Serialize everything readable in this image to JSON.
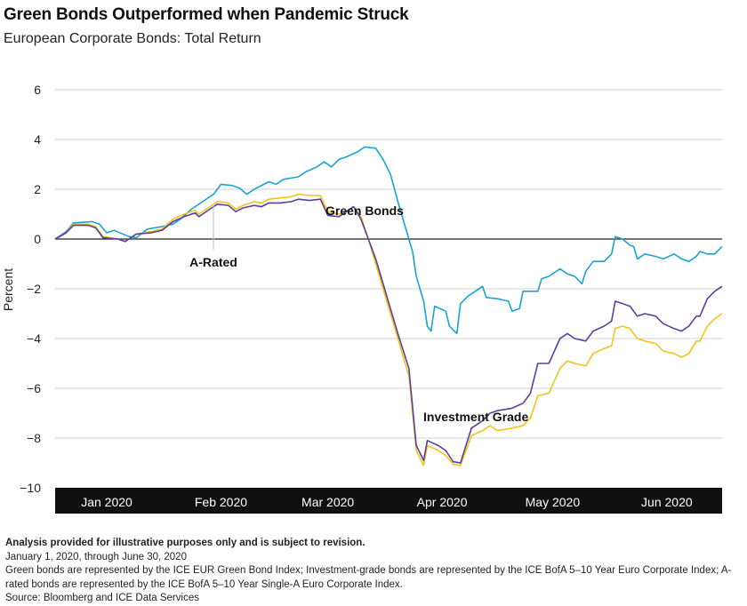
{
  "title": "Green Bonds Outperformed when Pandemic Struck",
  "subtitle": "European Corporate Bonds: Total Return",
  "notes": {
    "disclaimer": "Analysis provided for illustrative purposes only and is subject to revision.",
    "period": "January 1, 2020, through June 30, 2020",
    "definitions": "Green bonds are represented by the ICE EUR Green Bond Index; Investment-grade bonds are represented by the ICE BofA 5–10 Year Euro Corporate Index; A-rated bonds are represented by the ICE BofA 5–10 Year Single-A Euro Corporate Index.",
    "source": "Source: Bloomberg and ICE Data Services"
  },
  "chart_data": {
    "type": "line",
    "ylabel": "Percent",
    "ylim": [
      -10,
      6
    ],
    "yticks": [
      6,
      4,
      2,
      0,
      -2,
      -4,
      -6,
      -8,
      -10
    ],
    "yticklabels": [
      "6",
      "4",
      "2",
      "0",
      "−2",
      "−4",
      "−6",
      "−8",
      "−10"
    ],
    "x_range": [
      "2020-01-01",
      "2020-06-30"
    ],
    "month_labels": [
      {
        "label": "Jan 2020",
        "date": "2020-01-15"
      },
      {
        "label": "Feb 2020",
        "date": "2020-02-15"
      },
      {
        "label": "Mar 2020",
        "date": "2020-03-15"
      },
      {
        "label": "Apr 2020",
        "date": "2020-04-15"
      },
      {
        "label": "May 2020",
        "date": "2020-05-15"
      },
      {
        "label": "Jun 2020",
        "date": "2020-06-15"
      }
    ],
    "zero_line": true,
    "annotations": [
      {
        "text": "Green Bonds",
        "series": "Green Bonds"
      },
      {
        "text": "A-Rated",
        "series": "A-Rated"
      },
      {
        "text": "Investment Grade",
        "series": "Investment Grade"
      }
    ],
    "series": [
      {
        "name": "Green Bonds",
        "color": "#1aa3d0",
        "points": [
          [
            "2020-01-01",
            0.0
          ],
          [
            "2020-01-04",
            0.3
          ],
          [
            "2020-01-06",
            0.65
          ],
          [
            "2020-01-11",
            0.7
          ],
          [
            "2020-01-13",
            0.6
          ],
          [
            "2020-01-15",
            0.25
          ],
          [
            "2020-01-17",
            0.35
          ],
          [
            "2020-01-21",
            0.1
          ],
          [
            "2020-01-23",
            0.05
          ],
          [
            "2020-01-26",
            0.4
          ],
          [
            "2020-01-30",
            0.5
          ],
          [
            "2020-02-02",
            0.6
          ],
          [
            "2020-02-04",
            0.8
          ],
          [
            "2020-02-07",
            1.2
          ],
          [
            "2020-02-10",
            1.5
          ],
          [
            "2020-02-13",
            1.8
          ],
          [
            "2020-02-15",
            2.2
          ],
          [
            "2020-02-18",
            2.15
          ],
          [
            "2020-02-20",
            2.05
          ],
          [
            "2020-02-22",
            1.8
          ],
          [
            "2020-02-24",
            2.0
          ],
          [
            "2020-02-28",
            2.3
          ],
          [
            "2020-03-01",
            2.2
          ],
          [
            "2020-03-03",
            2.4
          ],
          [
            "2020-03-07",
            2.5
          ],
          [
            "2020-03-09",
            2.7
          ],
          [
            "2020-03-12",
            2.9
          ],
          [
            "2020-03-14",
            3.1
          ],
          [
            "2020-03-16",
            2.9
          ],
          [
            "2020-03-18",
            3.2
          ],
          [
            "2020-03-20",
            3.3
          ],
          [
            "2020-03-23",
            3.5
          ],
          [
            "2020-03-25",
            3.7
          ],
          [
            "2020-03-28",
            3.65
          ],
          [
            "2020-03-30",
            3.2
          ],
          [
            "2020-04-01",
            2.6
          ],
          [
            "2020-04-03",
            1.5
          ],
          [
            "2020-04-05",
            0.5
          ],
          [
            "2020-04-07",
            -0.5
          ],
          [
            "2020-04-08",
            -1.5
          ],
          [
            "2020-04-10",
            -2.5
          ],
          [
            "2020-04-11",
            -3.5
          ],
          [
            "2020-04-12",
            -3.7
          ],
          [
            "2020-04-13",
            -2.7
          ],
          [
            "2020-04-16",
            -2.9
          ],
          [
            "2020-04-17",
            -3.5
          ],
          [
            "2020-04-19",
            -3.8
          ],
          [
            "2020-04-20",
            -2.6
          ],
          [
            "2020-04-22",
            -2.3
          ],
          [
            "2020-04-24",
            -2.1
          ],
          [
            "2020-04-26",
            -1.9
          ],
          [
            "2020-04-27",
            -2.35
          ],
          [
            "2020-04-30",
            -2.4
          ],
          [
            "2020-05-03",
            -2.5
          ],
          [
            "2020-05-04",
            -2.9
          ],
          [
            "2020-05-06",
            -2.8
          ],
          [
            "2020-05-07",
            -2.1
          ],
          [
            "2020-05-11",
            -2.1
          ],
          [
            "2020-05-12",
            -1.6
          ],
          [
            "2020-05-14",
            -1.5
          ],
          [
            "2020-05-17",
            -1.2
          ],
          [
            "2020-05-19",
            -1.4
          ],
          [
            "2020-05-21",
            -1.5
          ],
          [
            "2020-05-23",
            -1.8
          ],
          [
            "2020-05-24",
            -1.3
          ],
          [
            "2020-05-26",
            -0.9
          ],
          [
            "2020-05-29",
            -0.9
          ],
          [
            "2020-05-31",
            -0.6
          ],
          [
            "2020-06-01",
            0.1
          ],
          [
            "2020-06-03",
            0.0
          ],
          [
            "2020-06-05",
            -0.25
          ],
          [
            "2020-06-06",
            -0.3
          ],
          [
            "2020-06-07",
            -0.8
          ],
          [
            "2020-06-09",
            -0.6
          ],
          [
            "2020-06-12",
            -0.7
          ],
          [
            "2020-06-14",
            -0.8
          ],
          [
            "2020-06-17",
            -0.6
          ],
          [
            "2020-06-19",
            -0.8
          ],
          [
            "2020-06-21",
            -0.9
          ],
          [
            "2020-06-23",
            -0.7
          ],
          [
            "2020-06-24",
            -0.5
          ],
          [
            "2020-06-26",
            -0.6
          ],
          [
            "2020-06-28",
            -0.6
          ],
          [
            "2020-06-30",
            -0.3
          ]
        ]
      },
      {
        "name": "A-Rated",
        "color": "#f2c417",
        "points": [
          [
            "2020-01-01",
            0.0
          ],
          [
            "2020-01-04",
            0.25
          ],
          [
            "2020-01-06",
            0.6
          ],
          [
            "2020-01-10",
            0.6
          ],
          [
            "2020-01-12",
            0.5
          ],
          [
            "2020-01-14",
            0.1
          ],
          [
            "2020-01-18",
            0.0
          ],
          [
            "2020-01-20",
            -0.1
          ],
          [
            "2020-01-23",
            0.2
          ],
          [
            "2020-01-27",
            0.3
          ],
          [
            "2020-01-30",
            0.4
          ],
          [
            "2020-02-02",
            0.8
          ],
          [
            "2020-02-05",
            1.0
          ],
          [
            "2020-02-08",
            1.15
          ],
          [
            "2020-02-09",
            1.0
          ],
          [
            "2020-02-12",
            1.3
          ],
          [
            "2020-02-14",
            1.5
          ],
          [
            "2020-02-17",
            1.45
          ],
          [
            "2020-02-19",
            1.2
          ],
          [
            "2020-02-21",
            1.35
          ],
          [
            "2020-02-24",
            1.5
          ],
          [
            "2020-02-26",
            1.45
          ],
          [
            "2020-02-28",
            1.6
          ],
          [
            "2020-03-02",
            1.65
          ],
          [
            "2020-03-05",
            1.7
          ],
          [
            "2020-03-07",
            1.8
          ],
          [
            "2020-03-10",
            1.75
          ],
          [
            "2020-03-13",
            1.75
          ],
          [
            "2020-03-15",
            1.1
          ],
          [
            "2020-03-18",
            1.0
          ],
          [
            "2020-03-20",
            1.1
          ],
          [
            "2020-03-22",
            1.3
          ],
          [
            "2020-03-24",
            0.9
          ],
          [
            "2020-03-26",
            0.0
          ],
          [
            "2020-03-28",
            -1.0
          ],
          [
            "2020-04-01",
            -3.0
          ],
          [
            "2020-04-03",
            -4.0
          ],
          [
            "2020-04-06",
            -5.5
          ],
          [
            "2020-04-08",
            -8.5
          ],
          [
            "2020-04-10",
            -9.1
          ],
          [
            "2020-04-11",
            -8.3
          ],
          [
            "2020-04-14",
            -8.5
          ],
          [
            "2020-04-16",
            -8.7
          ],
          [
            "2020-04-18",
            -9.05
          ],
          [
            "2020-04-20",
            -9.1
          ],
          [
            "2020-04-23",
            -7.9
          ],
          [
            "2020-04-26",
            -7.7
          ],
          [
            "2020-04-28",
            -7.5
          ],
          [
            "2020-04-30",
            -7.7
          ],
          [
            "2020-05-04",
            -7.6
          ],
          [
            "2020-05-07",
            -7.5
          ],
          [
            "2020-05-09",
            -7.2
          ],
          [
            "2020-05-11",
            -6.3
          ],
          [
            "2020-05-14",
            -6.2
          ],
          [
            "2020-05-17",
            -5.2
          ],
          [
            "2020-05-19",
            -4.9
          ],
          [
            "2020-05-21",
            -5.0
          ],
          [
            "2020-05-24",
            -5.1
          ],
          [
            "2020-05-26",
            -4.6
          ],
          [
            "2020-05-29",
            -4.4
          ],
          [
            "2020-05-31",
            -4.3
          ],
          [
            "2020-06-01",
            -3.6
          ],
          [
            "2020-06-03",
            -3.5
          ],
          [
            "2020-06-05",
            -3.6
          ],
          [
            "2020-06-07",
            -4.0
          ],
          [
            "2020-06-09",
            -4.1
          ],
          [
            "2020-06-12",
            -4.2
          ],
          [
            "2020-06-14",
            -4.5
          ],
          [
            "2020-06-17",
            -4.6
          ],
          [
            "2020-06-19",
            -4.75
          ],
          [
            "2020-06-21",
            -4.6
          ],
          [
            "2020-06-23",
            -4.1
          ],
          [
            "2020-06-24",
            -4.1
          ],
          [
            "2020-06-26",
            -3.5
          ],
          [
            "2020-06-28",
            -3.2
          ],
          [
            "2020-06-30",
            -3.0
          ]
        ]
      },
      {
        "name": "Investment Grade",
        "color": "#5b3fa0",
        "points": [
          [
            "2020-01-01",
            0.0
          ],
          [
            "2020-01-04",
            0.25
          ],
          [
            "2020-01-06",
            0.55
          ],
          [
            "2020-01-10",
            0.55
          ],
          [
            "2020-01-12",
            0.45
          ],
          [
            "2020-01-14",
            0.05
          ],
          [
            "2020-01-18",
            0.0
          ],
          [
            "2020-01-20",
            -0.1
          ],
          [
            "2020-01-23",
            0.2
          ],
          [
            "2020-01-27",
            0.25
          ],
          [
            "2020-01-30",
            0.35
          ],
          [
            "2020-02-02",
            0.7
          ],
          [
            "2020-02-05",
            0.9
          ],
          [
            "2020-02-08",
            1.05
          ],
          [
            "2020-02-09",
            0.9
          ],
          [
            "2020-02-12",
            1.2
          ],
          [
            "2020-02-14",
            1.4
          ],
          [
            "2020-02-17",
            1.35
          ],
          [
            "2020-02-19",
            1.1
          ],
          [
            "2020-02-21",
            1.25
          ],
          [
            "2020-02-24",
            1.35
          ],
          [
            "2020-02-26",
            1.3
          ],
          [
            "2020-02-28",
            1.45
          ],
          [
            "2020-03-02",
            1.45
          ],
          [
            "2020-03-05",
            1.5
          ],
          [
            "2020-03-07",
            1.6
          ],
          [
            "2020-03-10",
            1.55
          ],
          [
            "2020-03-13",
            1.6
          ],
          [
            "2020-03-15",
            0.95
          ],
          [
            "2020-03-18",
            0.9
          ],
          [
            "2020-03-20",
            1.1
          ],
          [
            "2020-03-22",
            1.3
          ],
          [
            "2020-03-24",
            0.8
          ],
          [
            "2020-03-26",
            0.0
          ],
          [
            "2020-03-28",
            -0.8
          ],
          [
            "2020-04-01",
            -2.8
          ],
          [
            "2020-04-03",
            -3.8
          ],
          [
            "2020-04-06",
            -5.2
          ],
          [
            "2020-04-08",
            -8.3
          ],
          [
            "2020-04-10",
            -8.9
          ],
          [
            "2020-04-11",
            -8.1
          ],
          [
            "2020-04-14",
            -8.3
          ],
          [
            "2020-04-16",
            -8.5
          ],
          [
            "2020-04-18",
            -8.95
          ],
          [
            "2020-04-20",
            -9.0
          ],
          [
            "2020-04-23",
            -7.6
          ],
          [
            "2020-04-26",
            -7.3
          ],
          [
            "2020-04-28",
            -7.0
          ],
          [
            "2020-04-30",
            -6.9
          ],
          [
            "2020-05-04",
            -6.8
          ],
          [
            "2020-05-07",
            -6.6
          ],
          [
            "2020-05-09",
            -6.2
          ],
          [
            "2020-05-11",
            -5.0
          ],
          [
            "2020-05-14",
            -5.0
          ],
          [
            "2020-05-17",
            -4.0
          ],
          [
            "2020-05-19",
            -3.8
          ],
          [
            "2020-05-21",
            -4.0
          ],
          [
            "2020-05-24",
            -4.1
          ],
          [
            "2020-05-26",
            -3.7
          ],
          [
            "2020-05-29",
            -3.5
          ],
          [
            "2020-05-31",
            -3.3
          ],
          [
            "2020-06-01",
            -2.5
          ],
          [
            "2020-06-03",
            -2.6
          ],
          [
            "2020-06-05",
            -2.7
          ],
          [
            "2020-06-07",
            -3.1
          ],
          [
            "2020-06-09",
            -3.0
          ],
          [
            "2020-06-12",
            -3.1
          ],
          [
            "2020-06-14",
            -3.4
          ],
          [
            "2020-06-17",
            -3.6
          ],
          [
            "2020-06-19",
            -3.7
          ],
          [
            "2020-06-21",
            -3.5
          ],
          [
            "2020-06-23",
            -3.1
          ],
          [
            "2020-06-24",
            -3.1
          ],
          [
            "2020-06-26",
            -2.4
          ],
          [
            "2020-06-28",
            -2.1
          ],
          [
            "2020-06-30",
            -1.9
          ]
        ]
      }
    ]
  }
}
